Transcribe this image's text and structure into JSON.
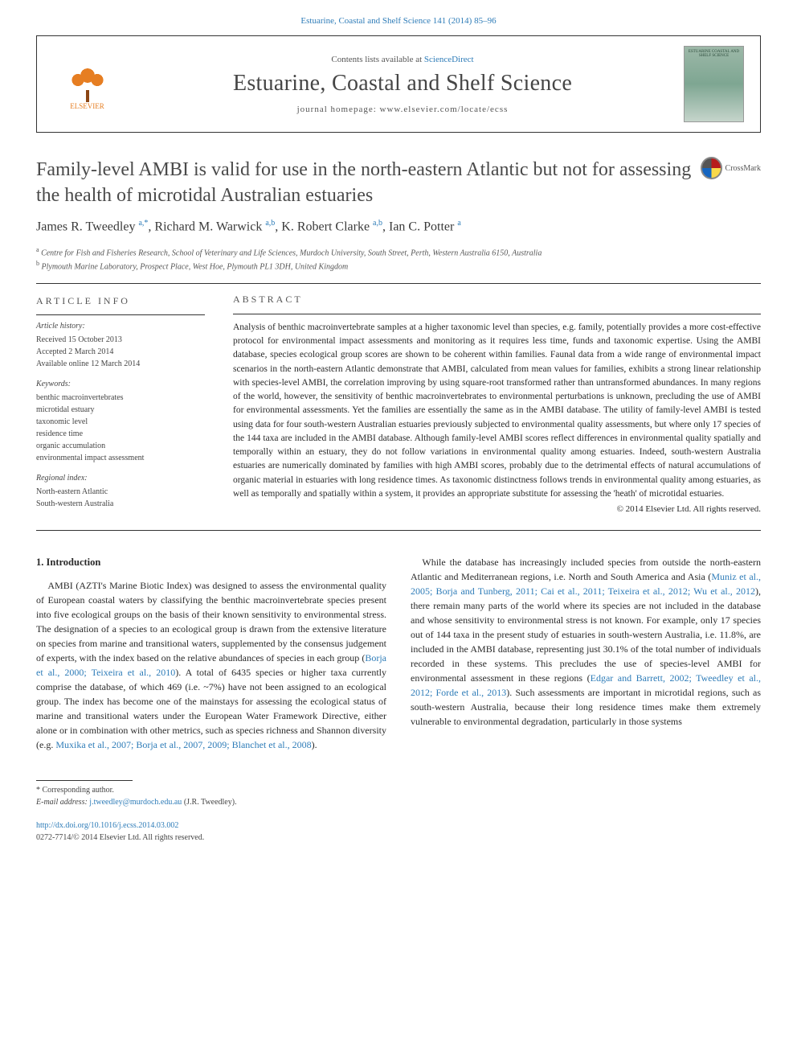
{
  "top_link": "Estuarine, Coastal and Shelf Science 141 (2014) 85–96",
  "header": {
    "elsevier_label": "ELSEVIER",
    "contents_prefix": "Contents lists available at ",
    "contents_link": "ScienceDirect",
    "journal_name": "Estuarine, Coastal and Shelf Science",
    "homepage_label": "journal homepage: ",
    "homepage_url": "www.elsevier.com/locate/ecss",
    "cover_text": "ESTUARINE COASTAL AND SHELF SCIENCE"
  },
  "article": {
    "title": "Family-level AMBI is valid for use in the north-eastern Atlantic but not for assessing the health of microtidal Australian estuaries",
    "crossmark_label": "CrossMark",
    "authors_html": "James R. Tweedley <sup>a,*</sup>, Richard M. Warwick <sup>a,b</sup>, K. Robert Clarke <sup>a,b</sup>, Ian C. Potter <sup>a</sup>",
    "affiliations": [
      {
        "sup": "a",
        "text": "Centre for Fish and Fisheries Research, School of Veterinary and Life Sciences, Murdoch University, South Street, Perth, Western Australia 6150, Australia"
      },
      {
        "sup": "b",
        "text": "Plymouth Marine Laboratory, Prospect Place, West Hoe, Plymouth PL1 3DH, United Kingdom"
      }
    ]
  },
  "info": {
    "heading": "ARTICLE INFO",
    "history_label": "Article history:",
    "history": [
      "Received 15 October 2013",
      "Accepted 2 March 2014",
      "Available online 12 March 2014"
    ],
    "keywords_label": "Keywords:",
    "keywords": [
      "benthic macroinvertebrates",
      "microtidal estuary",
      "taxonomic level",
      "residence time",
      "organic accumulation",
      "environmental impact assessment"
    ],
    "regional_label": "Regional index:",
    "regional": [
      "North-eastern Atlantic",
      "South-western Australia"
    ]
  },
  "abstract": {
    "heading": "ABSTRACT",
    "text": "Analysis of benthic macroinvertebrate samples at a higher taxonomic level than species, e.g. family, potentially provides a more cost-effective protocol for environmental impact assessments and monitoring as it requires less time, funds and taxonomic expertise. Using the AMBI database, species ecological group scores are shown to be coherent within families. Faunal data from a wide range of environmental impact scenarios in the north-eastern Atlantic demonstrate that AMBI, calculated from mean values for families, exhibits a strong linear relationship with species-level AMBI, the correlation improving by using square-root transformed rather than untransformed abundances. In many regions of the world, however, the sensitivity of benthic macroinvertebrates to environmental perturbations is unknown, precluding the use of AMBI for environmental assessments. Yet the families are essentially the same as in the AMBI database. The utility of family-level AMBI is tested using data for four south-western Australian estuaries previously subjected to environmental quality assessments, but where only 17 species of the 144 taxa are included in the AMBI database. Although family-level AMBI scores reflect differences in environmental quality spatially and temporally within an estuary, they do not follow variations in environmental quality among estuaries. Indeed, south-western Australia estuaries are numerically dominated by families with high AMBI scores, probably due to the detrimental effects of natural accumulations of organic material in estuaries with long residence times. As taxonomic distinctness follows trends in environmental quality among estuaries, as well as temporally and spatially within a system, it provides an appropriate substitute for assessing the 'heath' of microtidal estuaries.",
    "copyright": "© 2014 Elsevier Ltd. All rights reserved."
  },
  "body": {
    "section_heading": "1. Introduction",
    "p1_a": "AMBI (AZTI's Marine Biotic Index) was designed to assess the environmental quality of European coastal waters by classifying the benthic macroinvertebrate species present into five ecological groups on the basis of their known sensitivity to environmental stress. The designation of a species to an ecological group is drawn from the extensive literature on species from marine and transitional waters, supplemented by the consensus judgement of experts, with the index based on the relative abundances of species in each group (",
    "cite1": "Borja et al., 2000; Teixeira et al., 2010",
    "p1_b": "). A total of 6435 species or higher taxa currently comprise the database, of which 469 (i.e. ~7%) have not been assigned to an ecological group. The index has become one of the mainstays for assessing the ecological status of marine and transitional waters under the European Water Framework Directive, either alone or in combination with other metrics, such as species richness and Shannon diversity (e.g. ",
    "cite2": "Muxika et al., 2007; Borja et al., 2007, 2009; Blanchet et al., 2008",
    "p1_c": ").",
    "p2_a": "While the database has increasingly included species from outside the north-eastern Atlantic and Mediterranean regions, i.e. North and South America and Asia (",
    "cite3": "Muniz et al., 2005; Borja and Tunberg, 2011; Cai et al., 2011; Teixeira et al., 2012; Wu et al., 2012",
    "p2_b": "), there remain many parts of the world where its species are not included in the database and whose sensitivity to environmental stress is not known. For example, only 17 species out of 144 taxa in the present study of estuaries in south-western Australia, i.e. 11.8%, are included in the AMBI database, representing just 30.1% of the total number of individuals recorded in these systems. This precludes the use of species-level AMBI for environmental assessment in these regions (",
    "cite4": "Edgar and Barrett, 2002; Tweedley et al., 2012; Forde et al., 2013",
    "p2_c": "). Such assessments are important in microtidal regions, such as south-western Australia, because their long residence times make them extremely vulnerable to environmental degradation, particularly in those systems"
  },
  "footer": {
    "corr_label": "* Corresponding author.",
    "email_label": "E-mail address: ",
    "email": "j.tweedley@murdoch.edu.au",
    "email_suffix": " (J.R. Tweedley).",
    "doi": "http://dx.doi.org/10.1016/j.ecss.2014.03.002",
    "issn_line": "0272-7714/© 2014 Elsevier Ltd. All rights reserved."
  },
  "colors": {
    "link": "#2e7cb8",
    "text": "#2a2a2a",
    "heading": "#555555"
  }
}
